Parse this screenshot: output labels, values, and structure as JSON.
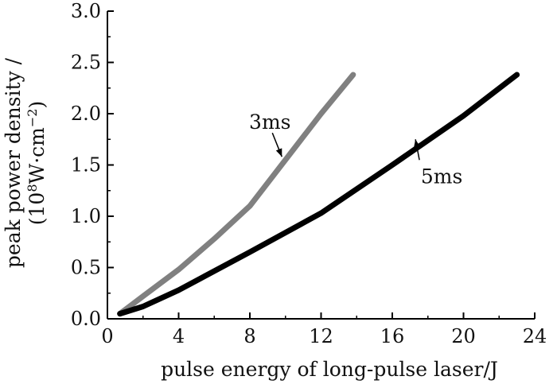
{
  "chart_data": {
    "type": "line",
    "title": "",
    "xlabel": "pulse energy of long-pulse laser/J",
    "ylabel_line1": "peak power density /",
    "ylabel_line2_parts": [
      "(10",
      "8",
      "W·cm",
      "−2",
      ")"
    ],
    "xlim": [
      0,
      24
    ],
    "ylim": [
      0,
      3.0
    ],
    "x_ticks": [
      0,
      4,
      8,
      12,
      16,
      20,
      24
    ],
    "y_ticks": [
      0.0,
      0.5,
      1.0,
      1.5,
      2.0,
      2.5,
      3.0
    ],
    "x_tick_labels": [
      "0",
      "4",
      "8",
      "12",
      "16",
      "20",
      "24"
    ],
    "y_tick_labels": [
      "0.0",
      "0.5",
      "1.0",
      "1.5",
      "2.0",
      "2.5",
      "3.0"
    ],
    "grid": false,
    "series": [
      {
        "name": "3ms",
        "color": "#808080",
        "x": [
          0.7,
          2,
          4,
          6,
          8,
          10,
          12,
          13.8
        ],
        "y": [
          0.05,
          0.22,
          0.48,
          0.78,
          1.1,
          1.55,
          2.0,
          2.38
        ],
        "label_anchor": [
          9.8,
          1.58
        ]
      },
      {
        "name": "5ms",
        "color": "#000000",
        "x": [
          0.7,
          2,
          4,
          8,
          12,
          16,
          20,
          23
        ],
        "y": [
          0.05,
          0.12,
          0.28,
          0.65,
          1.03,
          1.5,
          1.98,
          2.38
        ],
        "label_anchor": [
          17.3,
          1.75
        ]
      }
    ]
  }
}
